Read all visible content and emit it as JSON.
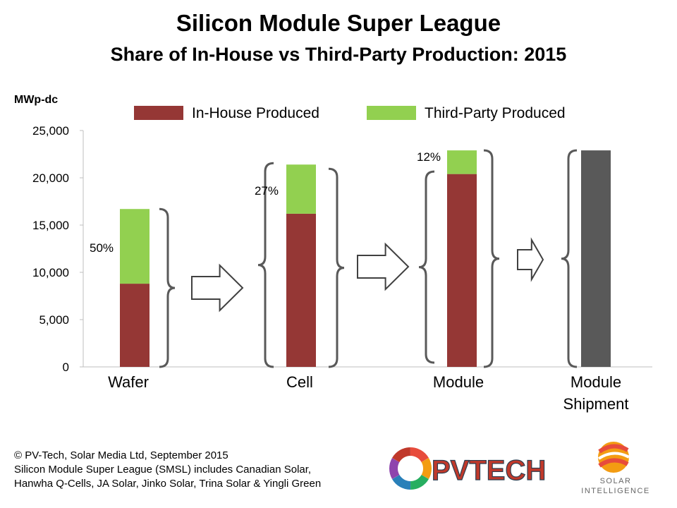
{
  "title": "Silicon Module Super League",
  "subtitle": "Share of In-House vs Third-Party Production: 2015",
  "chart_data": {
    "type": "bar",
    "stacked": true,
    "ylabel": "MWp-dc",
    "ylim": [
      0,
      25000
    ],
    "yticks": [
      0,
      5000,
      10000,
      15000,
      20000,
      25000
    ],
    "ytick_labels": [
      "0",
      "5,000",
      "10,000",
      "15,000",
      "20,000",
      "25,000"
    ],
    "categories": [
      "Wafer",
      "Cell",
      "Module",
      "Module Shipment"
    ],
    "category_lines": [
      [
        "Wafer"
      ],
      [
        "Cell"
      ],
      [
        "Module"
      ],
      [
        "Module",
        "Shipment"
      ]
    ],
    "series": [
      {
        "name": "In-House Produced",
        "color": "#953735",
        "values": [
          8800,
          16200,
          20400,
          null
        ]
      },
      {
        "name": "Third-Party Produced",
        "color": "#92D050",
        "values": [
          7900,
          5200,
          2500,
          null
        ]
      },
      {
        "name": "",
        "color": "#595959",
        "values": [
          null,
          null,
          null,
          22900
        ]
      }
    ],
    "share_labels": [
      "50%",
      "27%",
      "12%",
      ""
    ],
    "legend_position": "top",
    "grid": false
  },
  "footer": {
    "line1": "© PV-Tech, Solar Media Ltd, September 2015",
    "line2": "Silicon Module Super League (SMSL) includes Canadian Solar,",
    "line3": "Hanwha Q-Cells, JA Solar, Jinko Solar, Trina Solar & Yingli Green"
  },
  "logos": {
    "pvtech": "PVTECH",
    "solar_line1": "SOLAR",
    "solar_line2": "INTELLIGENCE"
  }
}
